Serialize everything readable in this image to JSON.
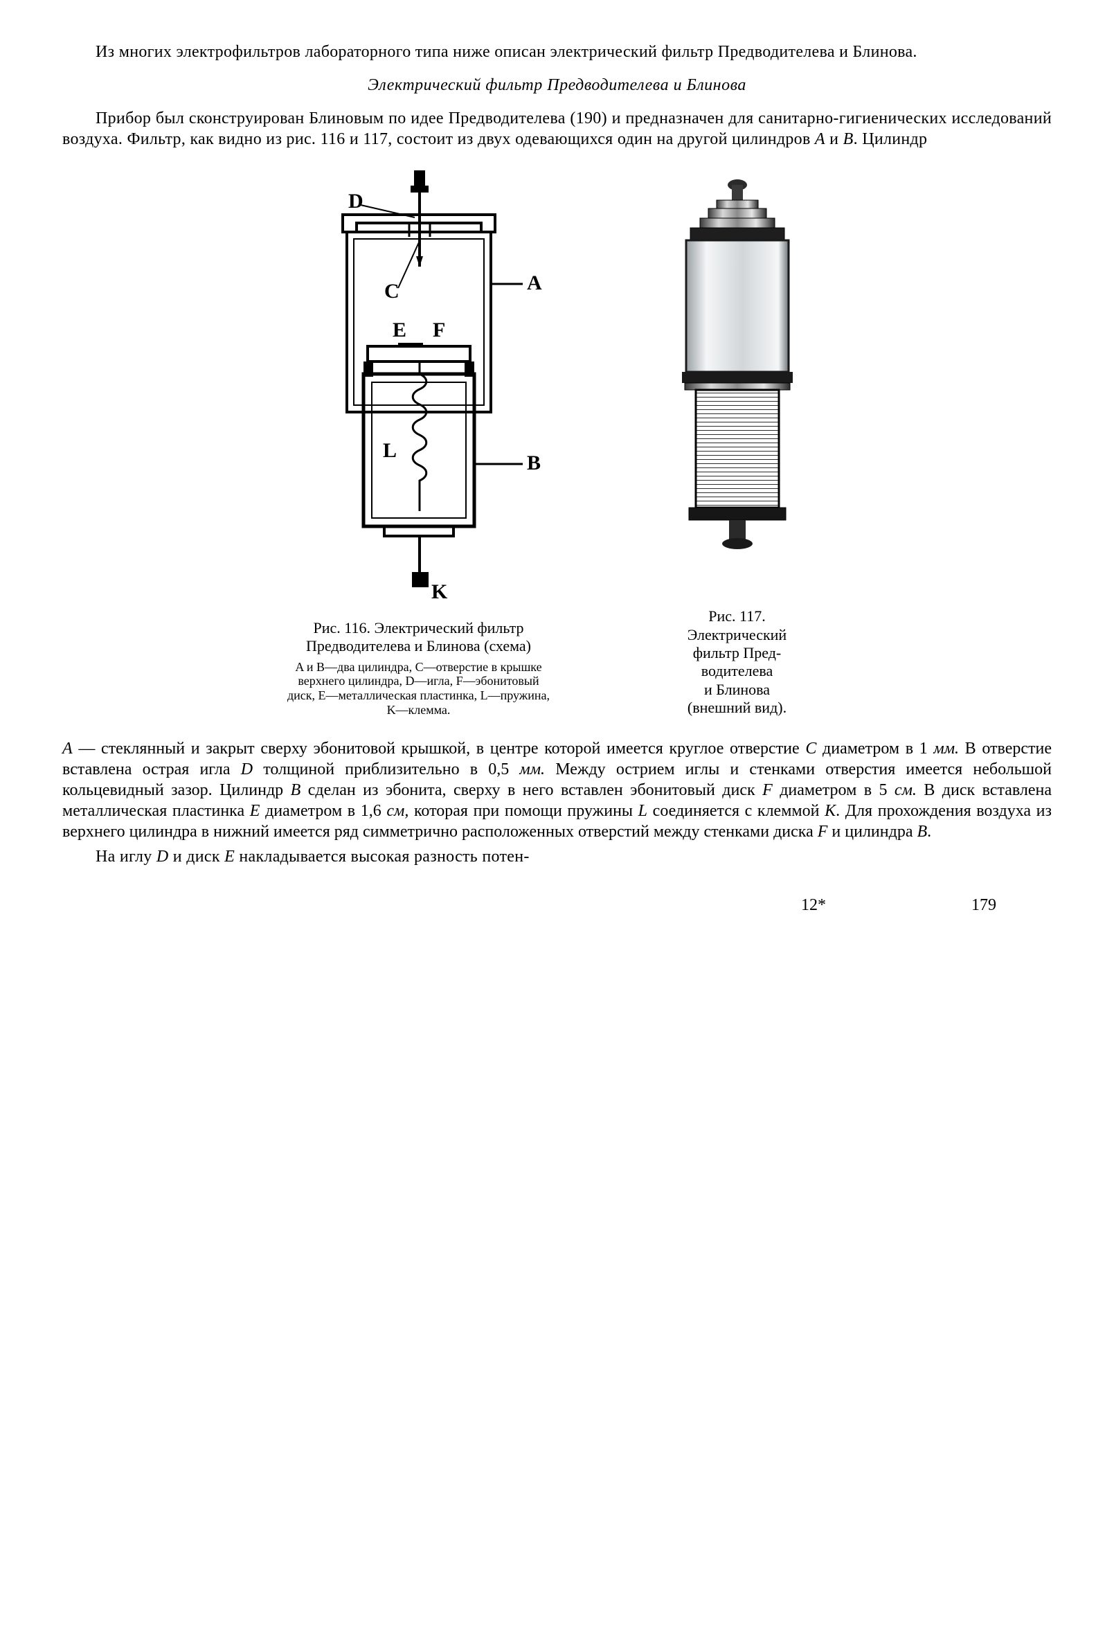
{
  "intro": {
    "p1": "Из многих электрофильтров лабораторного типа ниже описан электрический фильтр Предводителева и Блинова."
  },
  "subheading": "Электрический фильтр Предводителева и Блинова",
  "body": {
    "p2_pre": "Прибор был сконструирован Блиновым по идее Предводителева (190) и предназначен для санитарно-гигиенических исследований воздуха. Фильтр, как видно из рис. 116 и 117, состоит из двух одевающихся один на другой цилиндров ",
    "p2_A": "A",
    "p2_mid1": " и ",
    "p2_B": "B",
    "p2_post": ". Цилиндр",
    "p3_parts": [
      {
        "t": "A",
        "i": true
      },
      {
        "t": " — стеклянный и закрыт сверху эбонитовой крышкой, в центре которой имеется круглое отверстие "
      },
      {
        "t": "C",
        "i": true
      },
      {
        "t": " диаметром в 1 "
      },
      {
        "t": "мм.",
        "i": true
      },
      {
        "t": " В отверстие вставлена острая игла "
      },
      {
        "t": "D",
        "i": true
      },
      {
        "t": " толщиной приблизительно в 0,5 "
      },
      {
        "t": "мм.",
        "i": true
      },
      {
        "t": " Между острием иглы и стенками отверстия имеется небольшой кольцевидный зазор. Цилиндр "
      },
      {
        "t": "B",
        "i": true
      },
      {
        "t": " сделан из эбонита, сверху в него вставлен эбонитовый диск "
      },
      {
        "t": "F",
        "i": true
      },
      {
        "t": " диаметром в 5 "
      },
      {
        "t": "см.",
        "i": true
      },
      {
        "t": " В диск вставлена металлическая пластинка "
      },
      {
        "t": "E",
        "i": true
      },
      {
        "t": " диаметром в 1,6 "
      },
      {
        "t": "см,",
        "i": true
      },
      {
        "t": " которая при помощи пружины "
      },
      {
        "t": "L",
        "i": true
      },
      {
        "t": " соединяется с клеммой "
      },
      {
        "t": "K",
        "i": true
      },
      {
        "t": ". Для прохождения воздуха из верхнего цилиндра в нижний имеется ряд симметрично расположенных отверстий между стенками диска "
      },
      {
        "t": "F",
        "i": true
      },
      {
        "t": " и цилиндра "
      },
      {
        "t": "B",
        "i": true
      },
      {
        "t": "."
      }
    ],
    "p4_parts": [
      {
        "t": "На иглу "
      },
      {
        "t": "D",
        "i": true
      },
      {
        "t": " и диск "
      },
      {
        "t": "E",
        "i": true
      },
      {
        "t": " накладывается высокая разность потен-"
      }
    ]
  },
  "fig116": {
    "caption_main": "Рис. 116. Электрический фильтр Предводителева и Блинова (схема)",
    "caption_sub": "A и B—два цилиндра, C—отверстие в крышке верхнего цилиндра, D—игла, F—эбонитовый диск, E—металлическая пластинка, L—пружина, K—клемма.",
    "labels": {
      "A": "A",
      "B": "B",
      "C": "C",
      "D": "D",
      "E": "E",
      "F": "F",
      "L": "L",
      "K": "K"
    },
    "stroke": "#000000",
    "fill": "#000000"
  },
  "fig117": {
    "caption_lines": [
      "Рис. 117.",
      "Электрический",
      "фильтр Пред-",
      "водителева",
      "и Блинова",
      "(внешний вид)."
    ],
    "stroke": "#000000"
  },
  "footer": {
    "sig": "12*",
    "page": "179"
  }
}
